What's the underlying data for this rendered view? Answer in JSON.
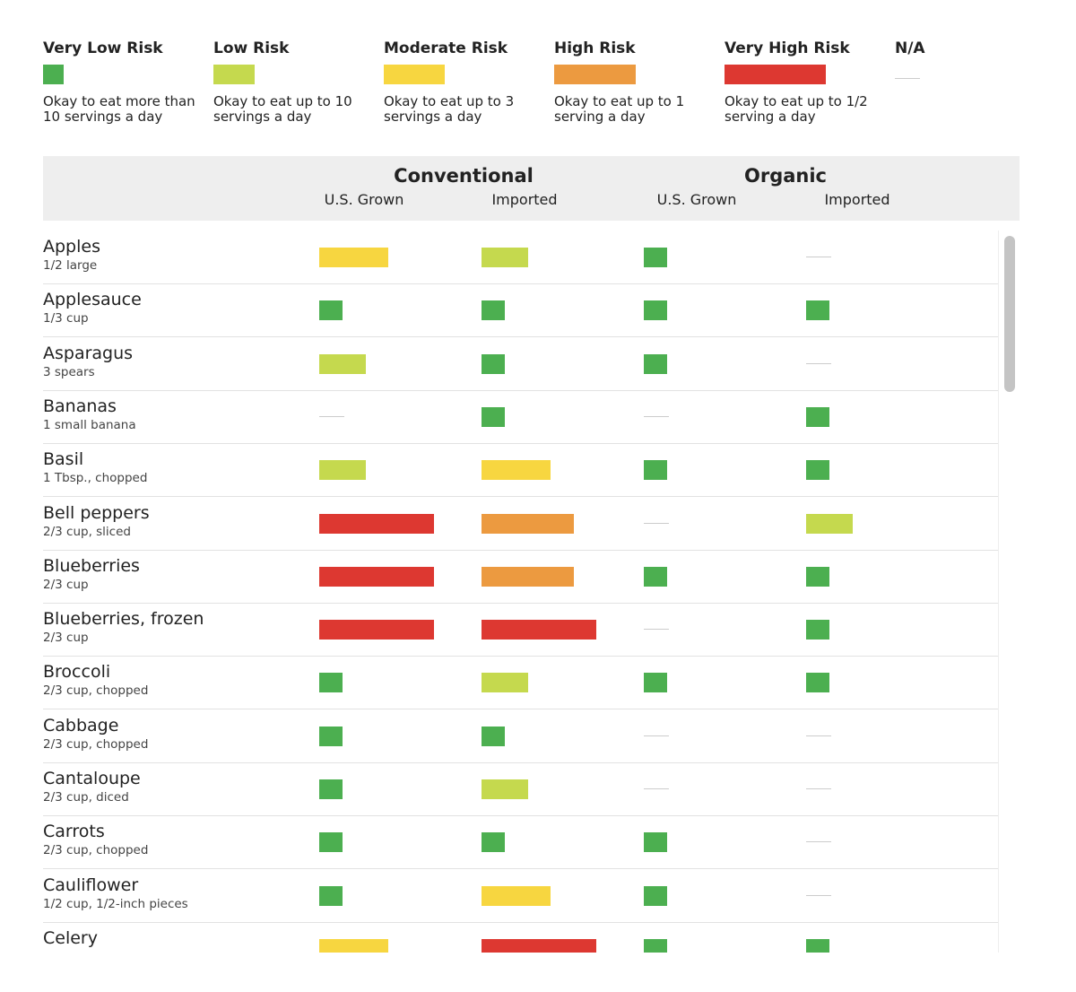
{
  "legend": [
    {
      "label": "Very Low Risk",
      "description": "Okay to eat more than 10 servings a day",
      "color": "#4caf50"
    },
    {
      "label": "Low Risk",
      "description": "Okay to eat up to 10 servings a day",
      "color": "#c5d94e"
    },
    {
      "label": "Moderate Risk",
      "description": "Okay to eat up to 3 servings a day",
      "color": "#f7d640"
    },
    {
      "label": "High Risk",
      "description": "Okay to eat up to 1 serving a day",
      "color": "#ec9a40"
    },
    {
      "label": "Very High Risk",
      "description": "Okay to eat up to 1/2 serving a day",
      "color": "#dd3831"
    },
    {
      "label": "N/A",
      "color": "#cccccc"
    }
  ],
  "table": {
    "groups": [
      "Conventional",
      "Organic"
    ],
    "columns": [
      "U.S. Grown",
      "Imported",
      "U.S. Grown",
      "Imported"
    ],
    "rows": [
      {
        "name": "Apples",
        "serving": "1/2 large",
        "ratings": [
          2,
          1,
          0,
          5
        ]
      },
      {
        "name": "Applesauce",
        "serving": "1/3 cup",
        "ratings": [
          0,
          0,
          0,
          0
        ]
      },
      {
        "name": "Asparagus",
        "serving": "3 spears",
        "ratings": [
          1,
          0,
          0,
          5
        ]
      },
      {
        "name": "Bananas",
        "serving": "1 small banana",
        "ratings": [
          5,
          0,
          5,
          0
        ]
      },
      {
        "name": "Basil",
        "serving": "1 Tbsp., chopped",
        "ratings": [
          1,
          2,
          0,
          0
        ]
      },
      {
        "name": "Bell peppers",
        "serving": "2/3 cup, sliced",
        "ratings": [
          4,
          3,
          5,
          1
        ]
      },
      {
        "name": "Blueberries",
        "serving": "2/3 cup",
        "ratings": [
          4,
          3,
          0,
          0
        ]
      },
      {
        "name": "Blueberries, frozen",
        "serving": "2/3 cup",
        "ratings": [
          4,
          4,
          5,
          0
        ]
      },
      {
        "name": "Broccoli",
        "serving": "2/3 cup, chopped",
        "ratings": [
          0,
          1,
          0,
          0
        ]
      },
      {
        "name": "Cabbage",
        "serving": "2/3 cup, chopped",
        "ratings": [
          0,
          0,
          5,
          5
        ]
      },
      {
        "name": "Cantaloupe",
        "serving": "2/3 cup, diced",
        "ratings": [
          0,
          1,
          5,
          5
        ]
      },
      {
        "name": "Carrots",
        "serving": "2/3 cup, chopped",
        "ratings": [
          0,
          0,
          0,
          5
        ]
      },
      {
        "name": "Cauliflower",
        "serving": "1/2 cup, 1/2-inch pieces",
        "ratings": [
          0,
          2,
          0,
          5
        ]
      },
      {
        "name": "Celery",
        "ratings": [
          2,
          4,
          0,
          0
        ]
      }
    ]
  }
}
